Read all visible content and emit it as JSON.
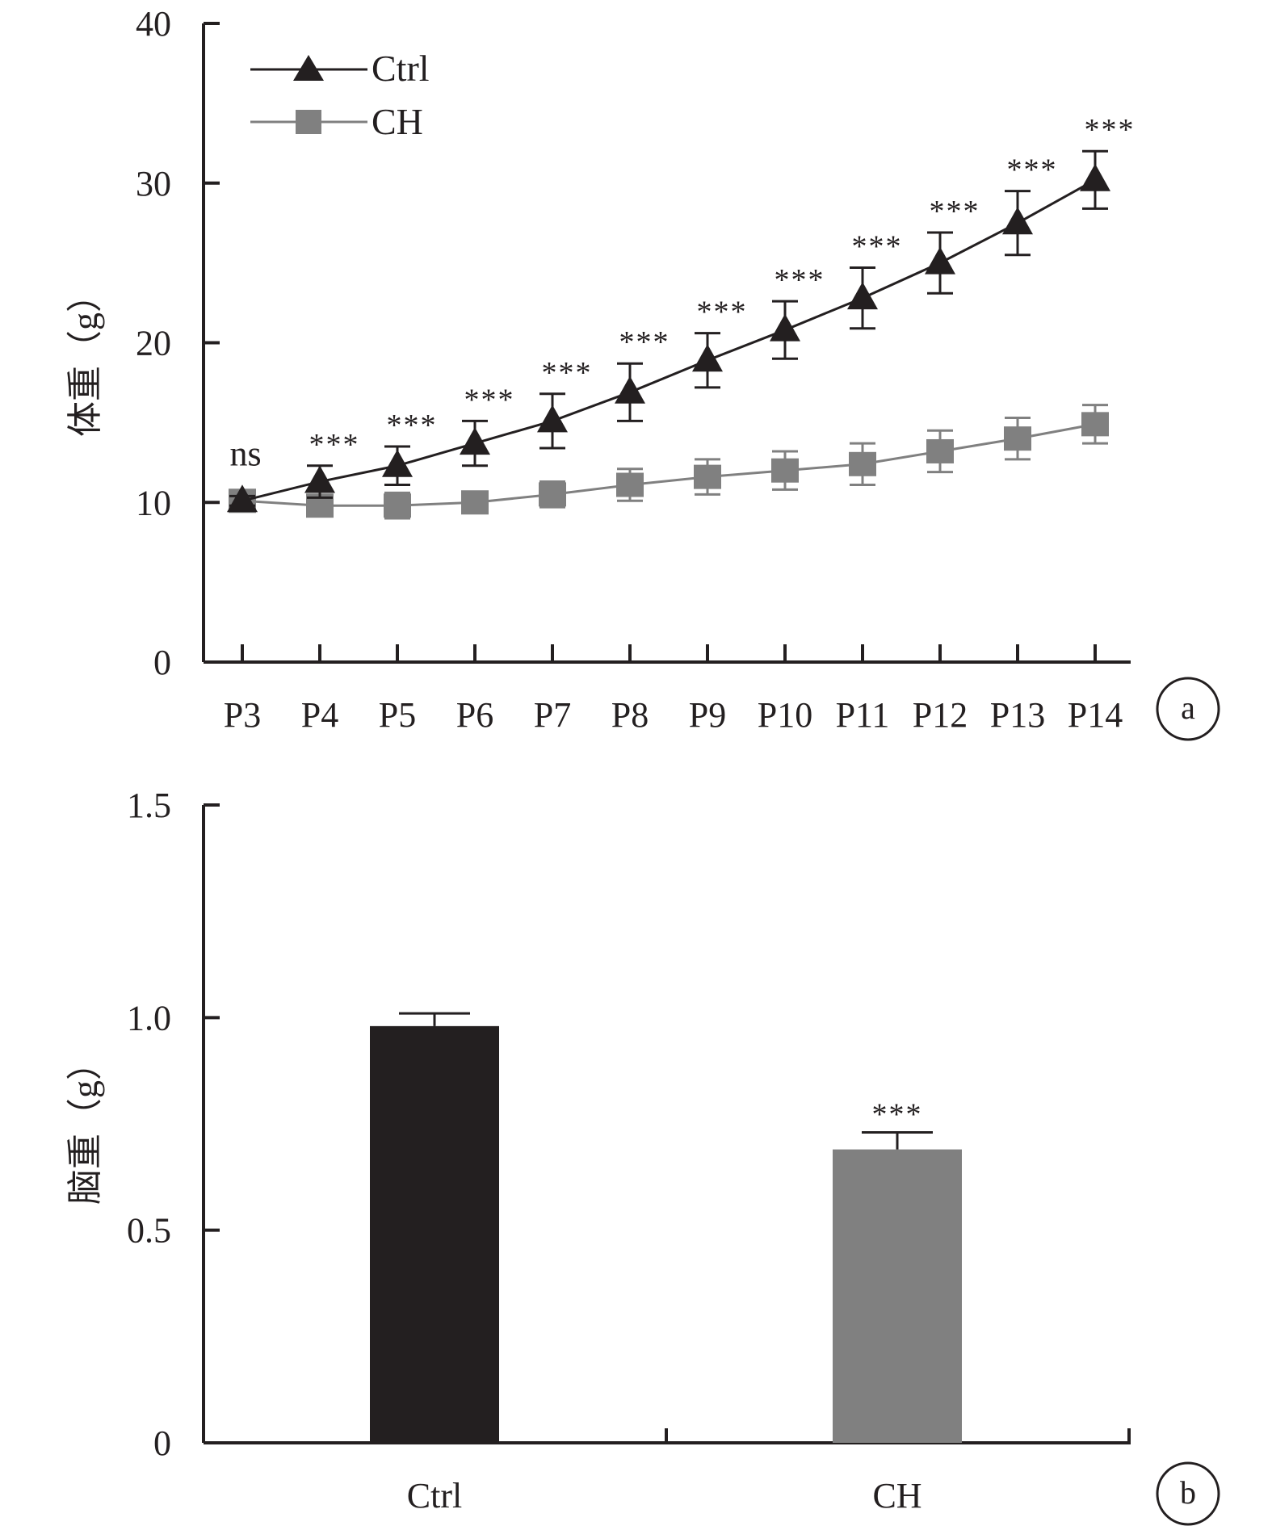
{
  "colors": {
    "ctrl": "#231f20",
    "ch": "#808080",
    "axis": "#231f20",
    "background": "#ffffff"
  },
  "panels": [
    {
      "letter": "a"
    },
    {
      "letter": "b"
    }
  ],
  "chart_data": [
    {
      "type": "line",
      "title": "",
      "xlabel": "",
      "ylabel": "体重（g）",
      "ylim": [
        0,
        40
      ],
      "yticks": [
        "0",
        "10",
        "20",
        "30",
        "40"
      ],
      "categories": [
        "P3",
        "P4",
        "P5",
        "P6",
        "P7",
        "P8",
        "P9",
        "P10",
        "P11",
        "P12",
        "P13",
        "P14"
      ],
      "legend_position": "top-left",
      "series": [
        {
          "name": "Ctrl",
          "marker": "triangle",
          "values": [
            10.1,
            11.3,
            12.3,
            13.7,
            15.1,
            16.9,
            18.9,
            20.8,
            22.8,
            25.0,
            27.5,
            30.2
          ],
          "errors": [
            0.3,
            1.0,
            1.2,
            1.4,
            1.7,
            1.8,
            1.7,
            1.8,
            1.9,
            1.9,
            2.0,
            1.8
          ]
        },
        {
          "name": "CH",
          "marker": "square",
          "values": [
            10.1,
            9.8,
            9.8,
            10.0,
            10.5,
            11.1,
            11.6,
            12.0,
            12.4,
            13.2,
            14.0,
            14.9
          ],
          "errors": [
            0.3,
            0.5,
            0.8,
            0.5,
            0.8,
            1.0,
            1.1,
            1.2,
            1.3,
            1.3,
            1.3,
            1.2
          ]
        }
      ],
      "annotations": [
        "ns",
        "***",
        "***",
        "***",
        "***",
        "***",
        "***",
        "***",
        "***",
        "***",
        "***",
        "***"
      ]
    },
    {
      "type": "bar",
      "title": "",
      "xlabel": "",
      "ylabel": "脑重（g）",
      "ylim": [
        0,
        1.5
      ],
      "yticks": [
        "0",
        "0.5",
        "1.0",
        "1.5"
      ],
      "categories": [
        "Ctrl",
        "CH"
      ],
      "values": [
        0.98,
        0.69
      ],
      "errors": [
        0.03,
        0.04
      ],
      "annotations": [
        "",
        "***"
      ]
    }
  ]
}
